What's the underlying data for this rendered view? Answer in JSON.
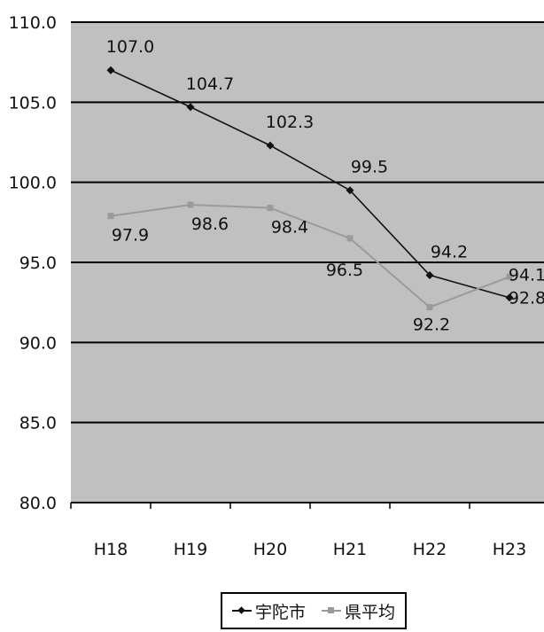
{
  "chart_data": {
    "type": "line",
    "categories": [
      "H18",
      "H19",
      "H20",
      "H21",
      "H22",
      "H23"
    ],
    "series": [
      {
        "name": "宇陀市",
        "values": [
          107.0,
          104.7,
          102.3,
          99.5,
          94.2,
          92.8
        ],
        "color": "#111111",
        "marker": "diamond"
      },
      {
        "name": "県平均",
        "values": [
          97.9,
          98.6,
          98.4,
          96.5,
          92.2,
          94.1
        ],
        "color": "#9a9a9a",
        "marker": "square"
      }
    ],
    "y_ticks": [
      "80.0",
      "85.0",
      "90.0",
      "95.0",
      "100.0",
      "105.0",
      "110.0"
    ],
    "ylim": [
      80,
      110
    ],
    "grid": true,
    "legend_position": "bottom",
    "plot_background": "#c0c0c0"
  },
  "legend": {
    "series1": "宇陀市",
    "series2": "県平均"
  }
}
